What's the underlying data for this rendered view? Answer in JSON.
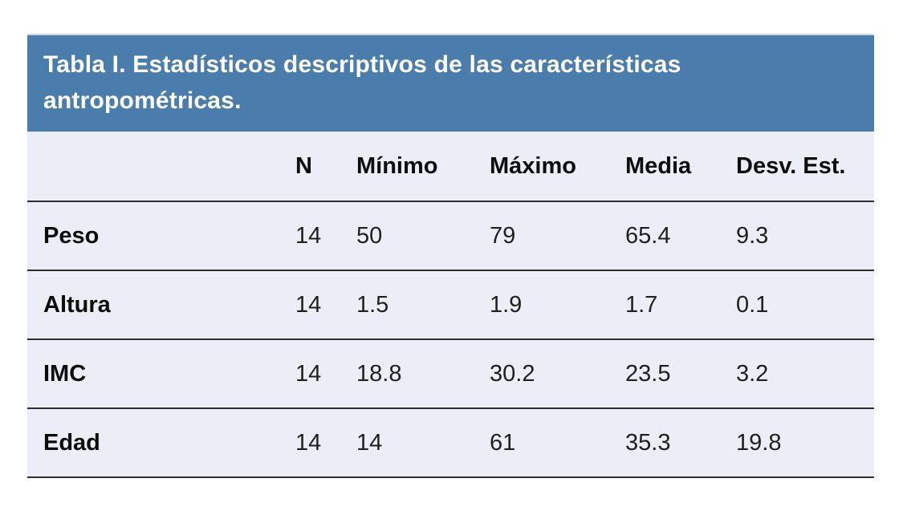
{
  "chart_data": {
    "type": "table",
    "title": "Tabla I. Estadísticos descriptivos de las características antropométricas.",
    "columns": [
      "",
      "N",
      "Mínimo",
      "Máximo",
      "Media",
      "Desv. Est."
    ],
    "rows": [
      {
        "label": "Peso",
        "values": [
          "14",
          "50",
          "79",
          "65.4",
          "9.3"
        ]
      },
      {
        "label": "Altura",
        "values": [
          "14",
          "1.5",
          "1.9",
          "1.7",
          "0.1"
        ]
      },
      {
        "label": "IMC",
        "values": [
          "14",
          "18.8",
          "30.2",
          "23.5",
          "3.2"
        ]
      },
      {
        "label": "Edad",
        "values": [
          "14",
          "14",
          "61",
          "35.3",
          "19.8"
        ]
      }
    ],
    "layout": {
      "legend": "none",
      "grid": "horizontal-rules-only"
    },
    "colors": {
      "title_bg": "#4a7dab",
      "title_text": "#ffffff",
      "title_top_border": "#ccd9e6",
      "row_bg": "#ebeef6",
      "rule_line": "#2e2e2e",
      "body_text": "#1f1f1f"
    }
  }
}
